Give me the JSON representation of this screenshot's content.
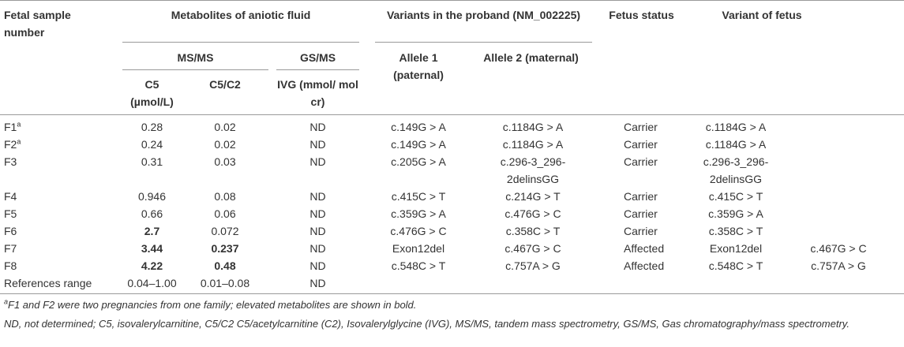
{
  "table": {
    "header": {
      "sample": "Fetal sample number",
      "metabolites": "Metabolites of aniotic fluid",
      "variants_proband": "Variants in the proband (NM_002225)",
      "fetus_status": "Fetus status",
      "variant_fetus": "Variant of fetus",
      "ms_ms": "MS/MS",
      "gs_ms": "GS/MS",
      "allele1": "Allele 1 (paternal)",
      "allele2": "Allele 2 (maternal)",
      "c5": "C5 (µmol/L)",
      "c5c2": "C5/C2",
      "ivg": "IVG (mmol/ mol cr)"
    },
    "rows": [
      {
        "cells": [
          "F1",
          "0.28",
          "0.02",
          "ND",
          "c.149G > A",
          "c.1184G > A",
          "Carrier",
          "c.1184G > A"
        ],
        "note": "a"
      },
      {
        "cells": [
          "F2",
          "0.24",
          "0.02",
          "ND",
          "c.149G > A",
          "c.1184G > A",
          "Carrier",
          "c.1184G > A"
        ],
        "note": "a"
      },
      {
        "cells": [
          "F3",
          "0.31",
          "0.03",
          "ND",
          "c.205G > A",
          "c.296-3_296-2delinsGG",
          "Carrier",
          "c.296-3_296-2delinsGG"
        ]
      },
      {
        "cells": [
          "F4",
          "0.946",
          "0.08",
          "ND",
          "c.415C > T",
          "c.214G > T",
          "Carrier",
          "c.415C > T"
        ]
      },
      {
        "cells": [
          "F5",
          "0.66",
          "0.06",
          "ND",
          "c.359G > A",
          "c.476G > C",
          "Carrier",
          "c.359G > A"
        ]
      },
      {
        "cells": [
          "F6",
          "2.7",
          "0.072",
          "ND",
          "c.476G > C",
          "c.358C > T",
          "Carrier",
          "c.358C > T"
        ]
      },
      {
        "cells": [
          "F7",
          "3.44",
          "0.237",
          "ND",
          "Exon12del",
          "c.467G > C",
          "Affected",
          "Exon12del",
          "c.467G > C"
        ]
      },
      {
        "cells": [
          "F8",
          "4.22",
          "0.48",
          "ND",
          "c.548C > T",
          "c.757A > G",
          "Affected",
          "c.548C > T",
          "c.757A > G"
        ]
      },
      {
        "cells": [
          "References range",
          "0.04–1.00",
          "0.01–0.08",
          "ND"
        ]
      }
    ],
    "bold": [
      [
        5,
        1
      ],
      [
        6,
        1
      ],
      [
        6,
        2
      ],
      [
        7,
        1
      ],
      [
        7,
        2
      ]
    ]
  },
  "footnotes": [
    {
      "marker": "a",
      "text": "F1 and F2 were two pregnancies from one family; elevated metabolites are shown in bold."
    },
    {
      "text": "ND, not determined; C5, isovalerylcarnitine, C5/C2 C5/acetylcarnitine (C2), Isovalerylglycine (IVG), MS/MS, tandem mass spectrometry, GS/MS, Gas chromatography/mass spectrometry."
    }
  ]
}
